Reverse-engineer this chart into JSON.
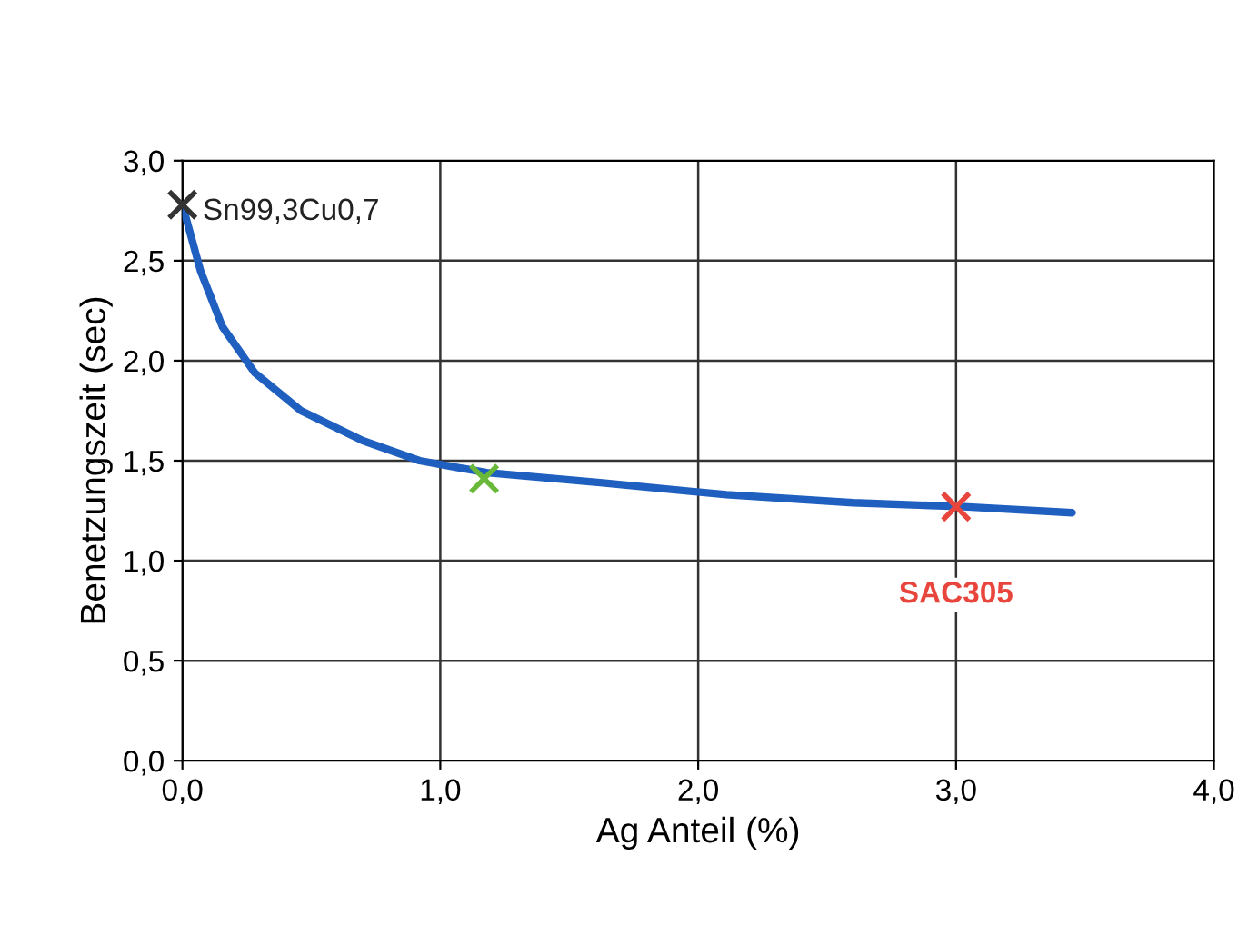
{
  "chart_data": {
    "type": "line",
    "xlabel": "Ag Anteil (%)",
    "ylabel": "Benetzungszeit (sec)",
    "xlim": [
      0,
      4
    ],
    "ylim": [
      0,
      3
    ],
    "xticks": [
      {
        "value": 0,
        "label": "0,0"
      },
      {
        "value": 1,
        "label": "1,0"
      },
      {
        "value": 2,
        "label": "2,0"
      },
      {
        "value": 3,
        "label": "3,0"
      },
      {
        "value": 4,
        "label": "4,0"
      }
    ],
    "yticks": [
      {
        "value": 0,
        "label": "0,0"
      },
      {
        "value": 0.5,
        "label": "0,5"
      },
      {
        "value": 1,
        "label": "1,0"
      },
      {
        "value": 1.5,
        "label": "1,5"
      },
      {
        "value": 2,
        "label": "2,0"
      },
      {
        "value": 2.5,
        "label": "2,5"
      },
      {
        "value": 3,
        "label": "3,0"
      }
    ],
    "grid": true,
    "series": [
      {
        "color": "#1f5fbf",
        "marker": "none",
        "line_style": "solid",
        "x": [
          0,
          0.07,
          0.155,
          0.28,
          0.46,
          0.7,
          0.92,
          1.18,
          1.62,
          2.11,
          2.6,
          3.03,
          3.45
        ],
        "values": [
          2.78,
          2.45,
          2.17,
          1.94,
          1.75,
          1.6,
          1.5,
          1.44,
          1.39,
          1.33,
          1.29,
          1.27,
          1.24
        ]
      },
      {
        "type": "scatter",
        "marker": "cross",
        "x": [
          0,
          1.17,
          3.0
        ],
        "values": [
          2.78,
          1.41,
          1.27
        ],
        "colors": [
          "#333333",
          "#6ab83a",
          "#e8453c"
        ]
      }
    ],
    "annotations": [
      {
        "text": "Sn99,3Cu0,7",
        "x": 0,
        "y": 2.78
      },
      {
        "text": "SAC305",
        "x": 3.0,
        "y": 1.27
      }
    ]
  }
}
